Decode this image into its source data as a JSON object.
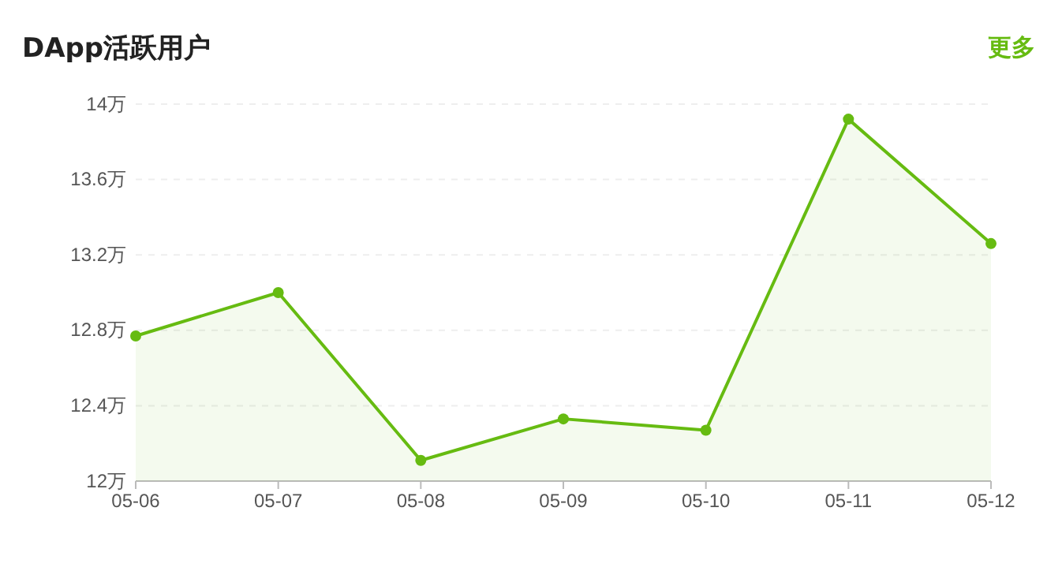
{
  "chart_data": {
    "type": "area",
    "title": "DApp活跃用户",
    "annotations": [
      "更多"
    ],
    "categories": [
      "05-06",
      "05-07",
      "05-08",
      "05-09",
      "05-10",
      "05-11",
      "05-12"
    ],
    "series": [
      {
        "color": "#66bb11",
        "values": [
          12.77,
          13.0,
          12.11,
          12.33,
          12.27,
          13.92,
          13.26
        ]
      }
    ],
    "ylim": [
      12,
      14
    ],
    "yticks": [
      {
        "value": 12,
        "label": "12万"
      },
      {
        "value": 12.4,
        "label": "12.4万"
      },
      {
        "value": 12.8,
        "label": "12.8万"
      },
      {
        "value": 13.2,
        "label": "13.2万"
      },
      {
        "value": 13.6,
        "label": "13.6万"
      },
      {
        "value": 14,
        "label": "14万"
      }
    ],
    "grid": "y",
    "marker": "circle",
    "line_style": "solid"
  }
}
